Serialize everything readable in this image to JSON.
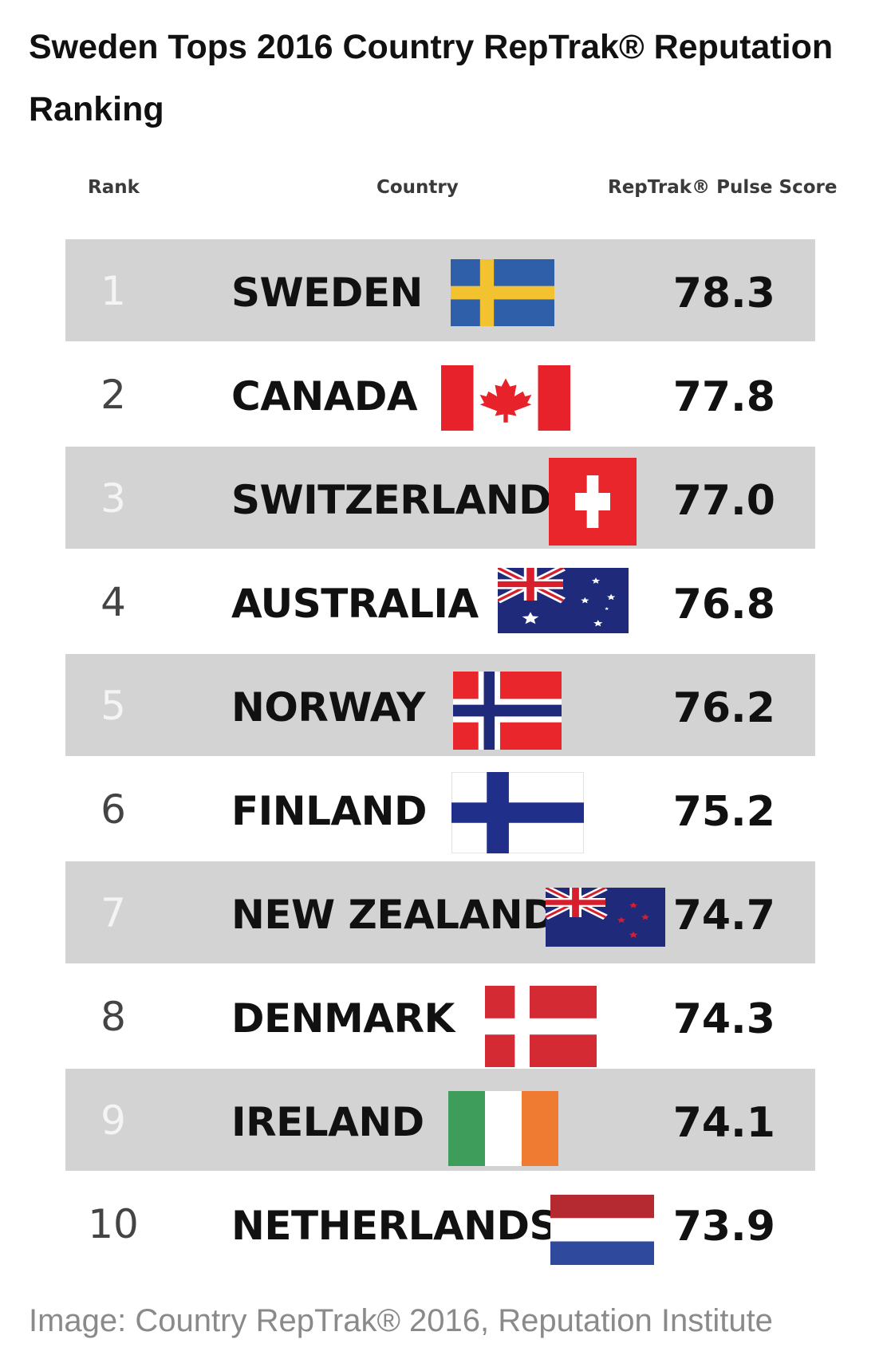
{
  "title": "Sweden Tops 2016 Country RepTrak® Reputation Ranking",
  "caption": "Image: Country RepTrak® 2016, Reputation Institute",
  "chart_data": {
    "type": "table",
    "title": "Sweden Tops 2016 Country RepTrak® Reputation Ranking",
    "columns": [
      "Rank",
      "Country",
      "RepTrak® Pulse Score"
    ],
    "rows": [
      {
        "rank": "1",
        "country": "SWEDEN",
        "score": "78.3",
        "flag": "sweden-flag-icon"
      },
      {
        "rank": "2",
        "country": "CANADA",
        "score": "77.8",
        "flag": "canada-flag-icon"
      },
      {
        "rank": "3",
        "country": "SWITZERLAND",
        "score": "77.0",
        "flag": "switzerland-flag-icon"
      },
      {
        "rank": "4",
        "country": "AUSTRALIA",
        "score": "76.8",
        "flag": "australia-flag-icon"
      },
      {
        "rank": "5",
        "country": "NORWAY",
        "score": "76.2",
        "flag": "norway-flag-icon"
      },
      {
        "rank": "6",
        "country": "FINLAND",
        "score": "75.2",
        "flag": "finland-flag-icon"
      },
      {
        "rank": "7",
        "country": "NEW ZEALAND",
        "score": "74.7",
        "flag": "new-zealand-flag-icon"
      },
      {
        "rank": "8",
        "country": "DENMARK",
        "score": "74.3",
        "flag": "denmark-flag-icon"
      },
      {
        "rank": "9",
        "country": "IRELAND",
        "score": "74.1",
        "flag": "ireland-flag-icon"
      },
      {
        "rank": "10",
        "country": "NETHERLANDS",
        "score": "73.9",
        "flag": "netherlands-flag-icon"
      }
    ],
    "shaded_rows": "odd ranks",
    "colors": {
      "row_shade": "#d3d3d3"
    }
  }
}
